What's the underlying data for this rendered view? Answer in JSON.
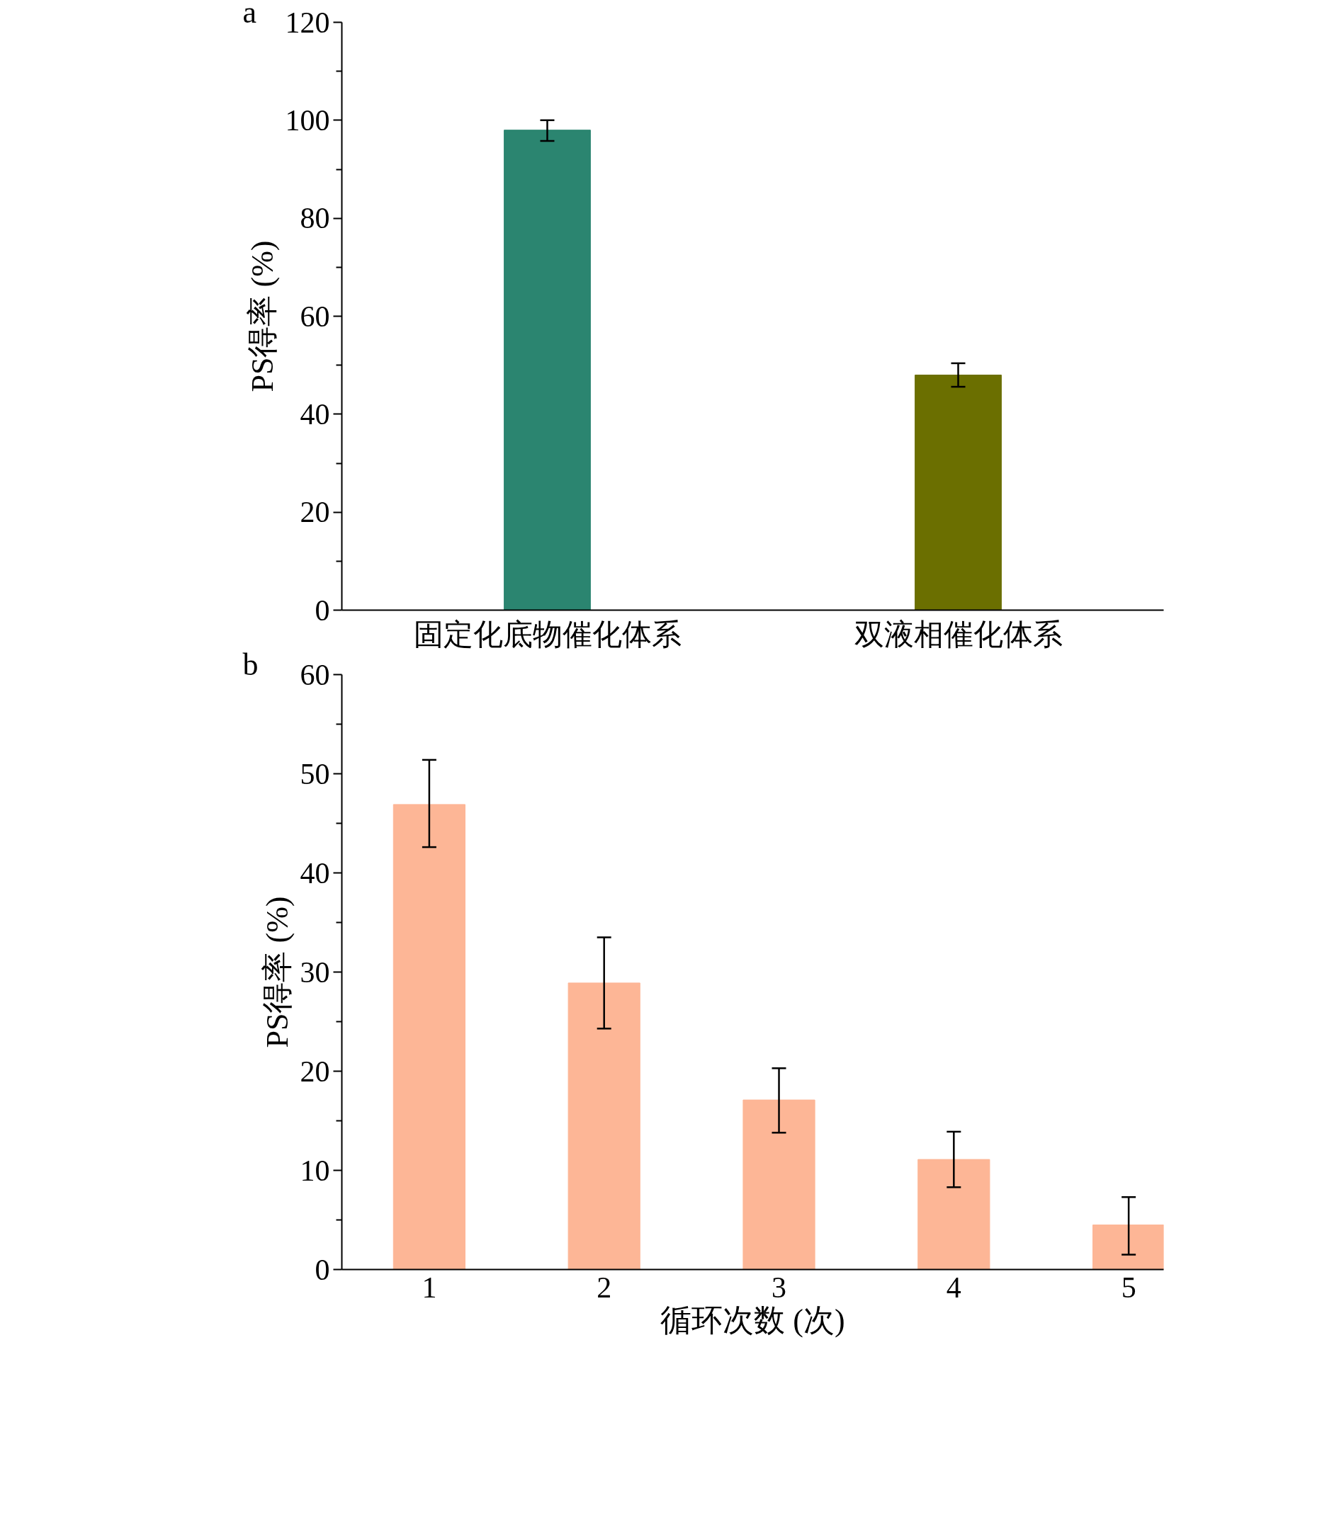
{
  "chart_data": [
    {
      "type": "bar",
      "ylabel": "PS得率 (%)",
      "annotations": [
        "a"
      ],
      "categories": [
        "固定化底物催化体系",
        "双液相催化体系"
      ],
      "values": [
        98,
        48
      ],
      "colors": [
        "#2b8570",
        "#6b6f00"
      ],
      "errors": [
        [
          95.8,
          100
        ],
        [
          45.6,
          50.4
        ]
      ],
      "ylim": [
        0,
        120
      ],
      "yticks": [
        0,
        20,
        40,
        60,
        80,
        100,
        120
      ],
      "grid": false
    },
    {
      "type": "bar",
      "xlabel": "循环次数 (次)",
      "ylabel": "PS得率 (%)",
      "annotations": [
        "b"
      ],
      "categories": [
        "1",
        "2",
        "3",
        "4",
        "5"
      ],
      "values": [
        46.9,
        28.9,
        17.1,
        11.1,
        4.5
      ],
      "colors": [
        "#fdb696",
        "#fdb696",
        "#fdb696",
        "#fdb696",
        "#fdb696"
      ],
      "errors": [
        [
          42.6,
          51.4
        ],
        [
          24.3,
          33.5
        ],
        [
          13.8,
          20.3
        ],
        [
          8.3,
          13.9
        ],
        [
          1.5,
          7.3
        ]
      ],
      "ylim": [
        0,
        60
      ],
      "yticks": [
        0,
        10,
        20,
        30,
        40,
        50,
        60
      ],
      "grid": false
    }
  ]
}
